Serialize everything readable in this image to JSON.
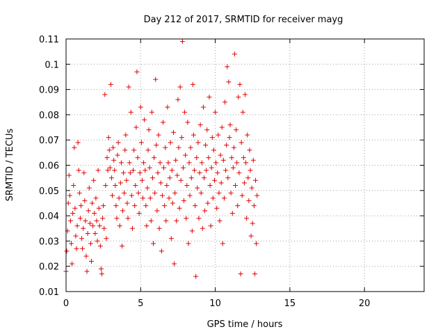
{
  "chart_data": {
    "type": "scatter",
    "title": "Day 212 of 2017, SRMTID for receiver mayg",
    "xlabel": "GPS time / hours",
    "ylabel": "SRMTID / TECUs",
    "xlim": [
      0,
      24
    ],
    "ylim": [
      0.01,
      0.11
    ],
    "xticks": [
      0,
      5,
      10,
      15,
      20
    ],
    "xtick_labels": [
      "0",
      "5",
      "10",
      "15",
      "20"
    ],
    "yticks": [
      0.01,
      0.02,
      0.03,
      0.04,
      0.05,
      0.06,
      0.07,
      0.08,
      0.09,
      0.1,
      0.11
    ],
    "ytick_labels": [
      "0.01",
      "0.02",
      "0.03",
      "0.04",
      "0.05",
      "0.06",
      "0.07",
      "0.08",
      "0.09",
      "0.1",
      "0.11"
    ],
    "marker": "+",
    "color": "#e00000",
    "grid": true,
    "series": [
      {
        "name": "SRMTID",
        "points": [
          [
            0.0,
            0.018
          ],
          [
            0.05,
            0.026
          ],
          [
            0.1,
            0.034
          ],
          [
            0.15,
            0.045
          ],
          [
            0.2,
            0.056
          ],
          [
            0.25,
            0.048
          ],
          [
            0.3,
            0.038
          ],
          [
            0.35,
            0.029
          ],
          [
            0.4,
            0.021
          ],
          [
            0.45,
            0.041
          ],
          [
            0.5,
            0.052
          ],
          [
            0.55,
            0.067
          ],
          [
            0.6,
            0.043
          ],
          [
            0.65,
            0.032
          ],
          [
            0.7,
            0.027
          ],
          [
            0.75,
            0.036
          ],
          [
            0.8,
            0.069
          ],
          [
            0.85,
            0.058
          ],
          [
            0.9,
            0.049
          ],
          [
            0.95,
            0.039
          ],
          [
            1.0,
            0.044
          ],
          [
            1.05,
            0.031
          ],
          [
            1.1,
            0.027
          ],
          [
            1.15,
            0.035
          ],
          [
            1.2,
            0.057
          ],
          [
            1.25,
            0.046
          ],
          [
            1.3,
            0.038
          ],
          [
            1.35,
            0.024
          ],
          [
            1.4,
            0.018
          ],
          [
            1.45,
            0.033
          ],
          [
            1.5,
            0.042
          ],
          [
            1.55,
            0.051
          ],
          [
            1.6,
            0.037
          ],
          [
            1.65,
            0.029
          ],
          [
            1.7,
            0.022
          ],
          [
            1.75,
            0.045
          ],
          [
            1.8,
            0.036
          ],
          [
            1.85,
            0.054
          ],
          [
            1.9,
            0.041
          ],
          [
            1.95,
            0.033
          ],
          [
            2.0,
            0.047
          ],
          [
            2.05,
            0.038
          ],
          [
            2.1,
            0.03
          ],
          [
            2.15,
            0.058
          ],
          [
            2.2,
            0.043
          ],
          [
            2.25,
            0.036
          ],
          [
            2.3,
            0.028
          ],
          [
            2.35,
            0.019
          ],
          [
            2.4,
            0.017
          ],
          [
            2.45,
            0.039
          ],
          [
            2.5,
            0.044
          ],
          [
            2.55,
            0.035
          ],
          [
            2.6,
            0.088
          ],
          [
            2.65,
            0.052
          ],
          [
            2.7,
            0.031
          ],
          [
            2.75,
            0.063
          ],
          [
            2.8,
            0.058
          ],
          [
            2.85,
            0.071
          ],
          [
            2.9,
            0.066
          ],
          [
            2.95,
            0.059
          ],
          [
            3.0,
            0.092
          ],
          [
            3.05,
            0.055
          ],
          [
            3.1,
            0.048
          ],
          [
            3.15,
            0.067
          ],
          [
            3.2,
            0.062
          ],
          [
            3.25,
            0.058
          ],
          [
            3.3,
            0.052
          ],
          [
            3.35,
            0.044
          ],
          [
            3.4,
            0.039
          ],
          [
            3.45,
            0.064
          ],
          [
            3.5,
            0.069
          ],
          [
            3.55,
            0.047
          ],
          [
            3.6,
            0.036
          ],
          [
            3.65,
            0.053
          ],
          [
            3.7,
            0.061
          ],
          [
            3.75,
            0.028
          ],
          [
            3.8,
            0.042
          ],
          [
            3.85,
            0.057
          ],
          [
            3.9,
            0.049
          ],
          [
            3.95,
            0.066
          ],
          [
            4.0,
            0.072
          ],
          [
            4.05,
            0.054
          ],
          [
            4.1,
            0.045
          ],
          [
            4.15,
            0.039
          ],
          [
            4.2,
            0.091
          ],
          [
            4.25,
            0.061
          ],
          [
            4.3,
            0.057
          ],
          [
            4.35,
            0.081
          ],
          [
            4.4,
            0.048
          ],
          [
            4.45,
            0.035
          ],
          [
            4.5,
            0.058
          ],
          [
            4.55,
            0.066
          ],
          [
            4.6,
            0.044
          ],
          [
            4.65,
            0.052
          ],
          [
            4.7,
            0.075
          ],
          [
            4.75,
            0.097
          ],
          [
            4.8,
            0.063
          ],
          [
            4.85,
            0.049
          ],
          [
            4.9,
            0.041
          ],
          [
            4.95,
            0.057
          ],
          [
            5.0,
            0.083
          ],
          [
            5.05,
            0.069
          ],
          [
            5.1,
            0.054
          ],
          [
            5.15,
            0.047
          ],
          [
            5.2,
            0.061
          ],
          [
            5.25,
            0.078
          ],
          [
            5.3,
            0.058
          ],
          [
            5.35,
            0.044
          ],
          [
            5.4,
            0.036
          ],
          [
            5.45,
            0.051
          ],
          [
            5.5,
            0.066
          ],
          [
            5.55,
            0.074
          ],
          [
            5.6,
            0.059
          ],
          [
            5.65,
            0.047
          ],
          [
            5.7,
            0.038
          ],
          [
            5.75,
            0.081
          ],
          [
            5.8,
            0.055
          ],
          [
            5.85,
            0.029
          ],
          [
            5.9,
            0.063
          ],
          [
            5.95,
            0.049
          ],
          [
            6.0,
            0.094
          ],
          [
            6.05,
            0.068
          ],
          [
            6.1,
            0.042
          ],
          [
            6.15,
            0.057
          ],
          [
            6.2,
            0.072
          ],
          [
            6.25,
            0.035
          ],
          [
            6.3,
            0.061
          ],
          [
            6.35,
            0.053
          ],
          [
            6.4,
            0.026
          ],
          [
            6.45,
            0.048
          ],
          [
            6.5,
            0.077
          ],
          [
            6.55,
            0.059
          ],
          [
            6.6,
            0.044
          ],
          [
            6.65,
            0.067
          ],
          [
            6.7,
            0.038
          ],
          [
            6.75,
            0.052
          ],
          [
            6.8,
            0.083
          ],
          [
            6.85,
            0.061
          ],
          [
            6.9,
            0.047
          ],
          [
            6.95,
            0.055
          ],
          [
            7.0,
            0.069
          ],
          [
            7.05,
            0.031
          ],
          [
            7.1,
            0.058
          ],
          [
            7.15,
            0.045
          ],
          [
            7.2,
            0.073
          ],
          [
            7.25,
            0.021
          ],
          [
            7.3,
            0.049
          ],
          [
            7.35,
            0.062
          ],
          [
            7.4,
            0.038
          ],
          [
            7.45,
            0.056
          ],
          [
            7.5,
            0.086
          ],
          [
            7.55,
            0.067
          ],
          [
            7.6,
            0.043
          ],
          [
            7.65,
            0.091
          ],
          [
            7.7,
            0.054
          ],
          [
            7.75,
            0.071
          ],
          [
            7.8,
            0.109
          ],
          [
            7.85,
            0.059
          ],
          [
            7.9,
            0.046
          ],
          [
            7.95,
            0.081
          ],
          [
            8.0,
            0.064
          ],
          [
            8.05,
            0.039
          ],
          [
            8.1,
            0.052
          ],
          [
            8.15,
            0.077
          ],
          [
            8.2,
            0.029
          ],
          [
            8.25,
            0.061
          ],
          [
            8.3,
            0.048
          ],
          [
            8.35,
            0.067
          ],
          [
            8.4,
            0.055
          ],
          [
            8.45,
            0.034
          ],
          [
            8.5,
            0.092
          ],
          [
            8.55,
            0.072
          ],
          [
            8.6,
            0.058
          ],
          [
            8.65,
            0.044
          ],
          [
            8.7,
            0.016
          ],
          [
            8.75,
            0.063
          ],
          [
            8.8,
            0.051
          ],
          [
            8.85,
            0.069
          ],
          [
            8.9,
            0.039
          ],
          [
            8.95,
            0.057
          ],
          [
            9.0,
            0.076
          ],
          [
            9.05,
            0.049
          ],
          [
            9.1,
            0.061
          ],
          [
            9.15,
            0.035
          ],
          [
            9.2,
            0.083
          ],
          [
            9.25,
            0.055
          ],
          [
            9.3,
            0.042
          ],
          [
            9.35,
            0.068
          ],
          [
            9.4,
            0.058
          ],
          [
            9.45,
            0.074
          ],
          [
            9.5,
            0.045
          ],
          [
            9.55,
            0.063
          ],
          [
            9.6,
            0.087
          ],
          [
            9.65,
            0.052
          ],
          [
            9.7,
            0.036
          ],
          [
            9.75,
            0.059
          ],
          [
            9.8,
            0.071
          ],
          [
            9.85,
            0.047
          ],
          [
            9.9,
            0.066
          ],
          [
            9.95,
            0.054
          ],
          [
            10.0,
            0.081
          ],
          [
            10.05,
            0.061
          ],
          [
            10.1,
            0.043
          ],
          [
            10.15,
            0.057
          ],
          [
            10.2,
            0.072
          ],
          [
            10.25,
            0.049
          ],
          [
            10.3,
            0.038
          ],
          [
            10.35,
            0.064
          ],
          [
            10.4,
            0.053
          ],
          [
            10.45,
            0.075
          ],
          [
            10.5,
            0.029
          ],
          [
            10.55,
            0.062
          ],
          [
            10.6,
            0.047
          ],
          [
            10.65,
            0.085
          ],
          [
            10.7,
            0.058
          ],
          [
            10.75,
            0.068
          ],
          [
            10.8,
            0.099
          ],
          [
            10.85,
            0.055
          ],
          [
            10.9,
            0.093
          ],
          [
            10.95,
            0.071
          ],
          [
            11.0,
            0.076
          ],
          [
            11.05,
            0.049
          ],
          [
            11.1,
            0.063
          ],
          [
            11.15,
            0.041
          ],
          [
            11.2,
            0.059
          ],
          [
            11.25,
            0.067
          ],
          [
            11.3,
            0.104
          ],
          [
            11.35,
            0.052
          ],
          [
            11.4,
            0.074
          ],
          [
            11.45,
            0.061
          ],
          [
            11.5,
            0.044
          ],
          [
            11.55,
            0.087
          ],
          [
            11.6,
            0.057
          ],
          [
            11.65,
            0.092
          ],
          [
            11.7,
            0.017
          ],
          [
            11.75,
            0.069
          ],
          [
            11.8,
            0.048
          ],
          [
            11.85,
            0.081
          ],
          [
            11.9,
            0.063
          ],
          [
            11.95,
            0.053
          ],
          [
            12.0,
            0.088
          ],
          [
            12.05,
            0.061
          ],
          [
            12.1,
            0.039
          ],
          [
            12.15,
            0.072
          ],
          [
            12.2,
            0.055
          ],
          [
            12.25,
            0.046
          ],
          [
            12.3,
            0.066
          ],
          [
            12.35,
            0.058
          ],
          [
            12.4,
            0.032
          ],
          [
            12.45,
            0.051
          ],
          [
            12.5,
            0.037
          ],
          [
            12.55,
            0.062
          ],
          [
            12.6,
            0.044
          ],
          [
            12.65,
            0.017
          ],
          [
            12.7,
            0.054
          ],
          [
            12.75,
            0.029
          ],
          [
            12.8,
            0.048
          ]
        ]
      }
    ]
  }
}
